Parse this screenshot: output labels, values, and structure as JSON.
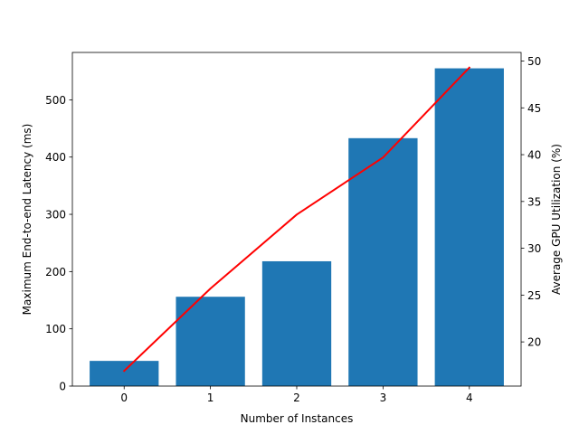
{
  "chart_data": {
    "type": "bar",
    "xlabel": "Number of Instances",
    "x": [
      0,
      1,
      2,
      3,
      4
    ],
    "x_ticks": [
      "0",
      "1",
      "2",
      "3",
      "4"
    ],
    "xlim": [
      -0.6,
      4.6
    ],
    "series": [
      {
        "axis": "left",
        "type": "bar",
        "color": "#1f77b4",
        "values": [
          44,
          156,
          218,
          433,
          555
        ]
      },
      {
        "axis": "right",
        "type": "line",
        "color": "#ff0000",
        "values": [
          16.9,
          25.7,
          33.6,
          39.7,
          49.3
        ]
      }
    ],
    "y_left": {
      "label": "Maximum End-to-end Latency (ms)",
      "ylim": [
        0,
        582.75
      ],
      "ticks": [
        0,
        100,
        200,
        300,
        400,
        500
      ],
      "tick_labels": [
        "0",
        "100",
        "200",
        "300",
        "400",
        "500"
      ]
    },
    "y_right": {
      "label": "Average GPU Utilization (%)",
      "ylim": [
        15.28,
        50.92
      ],
      "ticks": [
        20,
        25,
        30,
        35,
        40,
        45,
        50
      ],
      "tick_labels": [
        "20",
        "25",
        "30",
        "35",
        "40",
        "45",
        "50"
      ]
    },
    "grid": false,
    "legend": "none"
  }
}
